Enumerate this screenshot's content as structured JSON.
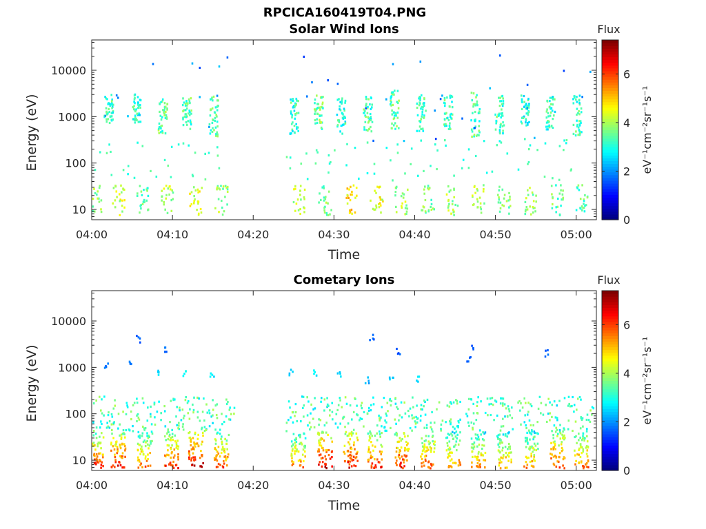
{
  "figure_title": "RPCICA160419T04.PNG",
  "colormap": "jet",
  "chart_data": [
    {
      "type": "heatmap",
      "title": "Solar Wind Ions",
      "xlabel": "Time",
      "ylabel": "Energy (eV)",
      "x_ticks": [
        "04:00",
        "04:10",
        "04:20",
        "04:30",
        "04:40",
        "04:50",
        "05:00"
      ],
      "x_tick_minutes": [
        0,
        10,
        20,
        30,
        40,
        50,
        60
      ],
      "xlim_minutes": [
        0,
        62.5
      ],
      "y_scale": "log",
      "ylim": [
        6,
        45000
      ],
      "y_ticks": [
        10,
        100,
        1000,
        10000
      ],
      "y_tick_labels": [
        "10",
        "100",
        "1000",
        "10000"
      ],
      "grid": false,
      "colorbar": {
        "title": "Flux",
        "unit": "eV⁻¹cm⁻²sr⁻¹s⁻¹",
        "range": [
          0,
          7.4
        ],
        "ticks": [
          0,
          2,
          4,
          6
        ]
      },
      "data_gap_minutes": [
        17.2,
        24.0
      ],
      "bursts": [
        {
          "t": 1.8,
          "e_low": 600,
          "e_high": 2800,
          "flux": 3.2
        },
        {
          "t": 5.2,
          "e_low": 700,
          "e_high": 2900,
          "flux": 3.0
        },
        {
          "t": 8.5,
          "e_low": 400,
          "e_high": 2600,
          "flux": 3.5
        },
        {
          "t": 11.5,
          "e_low": 500,
          "e_high": 2500,
          "flux": 3.4
        },
        {
          "t": 14.8,
          "e_low": 350,
          "e_high": 2600,
          "flux": 3.3
        },
        {
          "t": 24.8,
          "e_low": 400,
          "e_high": 2800,
          "flux": 3.2
        },
        {
          "t": 27.8,
          "e_low": 500,
          "e_high": 2700,
          "flux": 3.6
        },
        {
          "t": 30.6,
          "e_low": 400,
          "e_high": 2500,
          "flux": 3.1
        },
        {
          "t": 33.9,
          "e_low": 450,
          "e_high": 2700,
          "flux": 3.3
        },
        {
          "t": 37.2,
          "e_low": 500,
          "e_high": 3500,
          "flux": 3.4
        },
        {
          "t": 40.5,
          "e_low": 450,
          "e_high": 2800,
          "flux": 3.2
        },
        {
          "t": 43.8,
          "e_low": 500,
          "e_high": 2900,
          "flux": 3.3
        },
        {
          "t": 47.2,
          "e_low": 350,
          "e_high": 3200,
          "flux": 3.4
        },
        {
          "t": 50.2,
          "e_low": 400,
          "e_high": 2700,
          "flux": 3.2
        },
        {
          "t": 53.4,
          "e_low": 600,
          "e_high": 2800,
          "flux": 3.0
        },
        {
          "t": 56.5,
          "e_low": 500,
          "e_high": 2600,
          "flux": 3.1
        },
        {
          "t": 59.8,
          "e_low": 350,
          "e_high": 2800,
          "flux": 3.2
        }
      ],
      "low_bands": [
        {
          "t": 0.3,
          "flux": 3.8
        },
        {
          "t": 3.2,
          "flux": 4.2
        },
        {
          "t": 6.2,
          "flux": 3.5
        },
        {
          "t": 9.2,
          "flux": 4.0
        },
        {
          "t": 12.8,
          "flux": 4.3
        },
        {
          "t": 16.0,
          "flux": 3.9
        },
        {
          "t": 25.5,
          "flux": 4.1
        },
        {
          "t": 28.8,
          "flux": 3.7
        },
        {
          "t": 32.1,
          "flux": 4.8
        },
        {
          "t": 35.2,
          "flux": 4.4
        },
        {
          "t": 38.3,
          "flux": 4.0
        },
        {
          "t": 41.5,
          "flux": 3.6
        },
        {
          "t": 44.6,
          "flux": 3.9
        },
        {
          "t": 47.8,
          "flux": 4.0
        },
        {
          "t": 51.0,
          "flux": 3.6
        },
        {
          "t": 54.2,
          "flux": 3.8
        },
        {
          "t": 57.5,
          "flux": 3.5
        },
        {
          "t": 60.6,
          "flux": 3.4
        }
      ]
    },
    {
      "type": "heatmap",
      "title": "Cometary Ions",
      "xlabel": "Time",
      "ylabel": "Energy (eV)",
      "x_ticks": [
        "04:00",
        "04:10",
        "04:20",
        "04:30",
        "04:40",
        "04:50",
        "05:00"
      ],
      "x_tick_minutes": [
        0,
        10,
        20,
        30,
        40,
        50,
        60
      ],
      "xlim_minutes": [
        0,
        62.5
      ],
      "y_scale": "log",
      "ylim": [
        6,
        45000
      ],
      "y_ticks": [
        10,
        100,
        1000,
        10000
      ],
      "y_tick_labels": [
        "10",
        "100",
        "1000",
        "10000"
      ],
      "grid": false,
      "colorbar": {
        "title": "Flux",
        "unit": "eV⁻¹cm⁻²sr⁻¹s⁻¹",
        "range": [
          0,
          7.4
        ],
        "ticks": [
          0,
          2,
          4,
          6
        ]
      },
      "data_gap_minutes": [
        17.6,
        24.0
      ],
      "bursts": [
        {
          "t": 0.5,
          "flux": 6.2
        },
        {
          "t": 3.2,
          "flux": 6.5
        },
        {
          "t": 6.5,
          "flux": 5.8
        },
        {
          "t": 9.8,
          "flux": 6.2
        },
        {
          "t": 12.8,
          "flux": 6.8
        },
        {
          "t": 16.0,
          "flux": 6.0
        },
        {
          "t": 25.5,
          "flux": 5.6
        },
        {
          "t": 28.8,
          "flux": 6.8
        },
        {
          "t": 32.0,
          "flux": 6.6
        },
        {
          "t": 35.0,
          "flux": 6.2
        },
        {
          "t": 38.3,
          "flux": 6.4
        },
        {
          "t": 41.5,
          "flux": 6.0
        },
        {
          "t": 44.7,
          "flux": 5.6
        },
        {
          "t": 47.8,
          "flux": 5.5
        },
        {
          "t": 51.0,
          "flux": 5.4
        },
        {
          "t": 54.3,
          "flux": 5.4
        },
        {
          "t": 57.6,
          "flux": 6.2
        },
        {
          "t": 60.5,
          "flux": 5.8
        }
      ],
      "high_blips": [
        {
          "t": 8.1,
          "e": 700,
          "flux": 2.3
        },
        {
          "t": 11.4,
          "e": 700,
          "flux": 2.6
        },
        {
          "t": 14.8,
          "e": 600,
          "flux": 2.4
        },
        {
          "t": 24.6,
          "e": 700,
          "flux": 2.2
        },
        {
          "t": 27.6,
          "e": 700,
          "flux": 2.5
        },
        {
          "t": 30.6,
          "e": 700,
          "flux": 2.3
        },
        {
          "t": 34.0,
          "e": 500,
          "flux": 2.0
        },
        {
          "t": 37.0,
          "e": 500,
          "flux": 2.2
        },
        {
          "t": 40.2,
          "e": 500,
          "flux": 2.4
        },
        {
          "t": 1.7,
          "e": 950,
          "flux": 1.6
        },
        {
          "t": 4.8,
          "e": 1050,
          "flux": 1.5
        },
        {
          "t": 5.7,
          "e": 3800,
          "flux": 1.4
        },
        {
          "t": 9.2,
          "e": 2400,
          "flux": 1.5
        },
        {
          "t": 34.6,
          "e": 4200,
          "flux": 1.4
        },
        {
          "t": 37.9,
          "e": 2000,
          "flux": 1.4
        },
        {
          "t": 46.6,
          "e": 1400,
          "flux": 1.5
        },
        {
          "t": 47.2,
          "e": 2400,
          "flux": 1.4
        },
        {
          "t": 56.2,
          "e": 1900,
          "flux": 1.4
        }
      ]
    }
  ]
}
